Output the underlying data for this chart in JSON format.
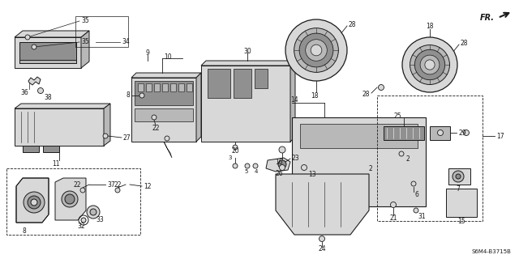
{
  "bg_color": "#ffffff",
  "lc": "#1a1a1a",
  "fill_light": "#d8d8d8",
  "fill_mid": "#b8b8b8",
  "fill_dark": "#909090",
  "watermark": "S6M4-B3715B",
  "fig_w": 6.4,
  "fig_h": 3.2,
  "dpi": 100
}
